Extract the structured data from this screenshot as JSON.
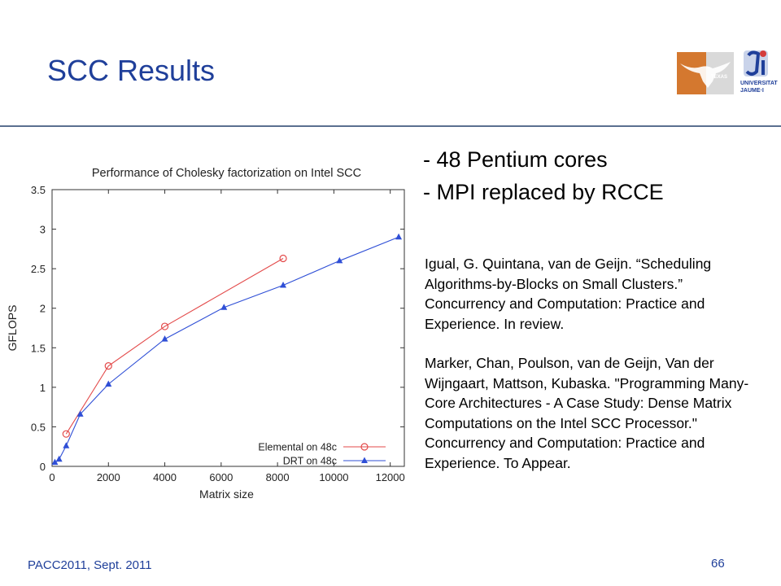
{
  "slide": {
    "title": "SCC Results",
    "bullets": [
      "- 48 Pentium cores",
      "- MPI replaced by RCCE"
    ],
    "references": [
      "Igual, G. Quintana, van de Geijn. “Scheduling Algorithms-by-Blocks on Small Clusters.” Concurrency and Computation: Practice and Experience. In review.",
      "Marker, Chan, Poulson, van de Geijn, Van der Wijngaart, Mattson, Kubaska. \"Programming Many-Core Architectures - A Case Study: Dense Matrix Computations on the Intel SCC Processor.\" Concurrency and Computation: Practice and Experience. To Appear."
    ],
    "footer_left": "PACC2011, Sept. 2011",
    "page_number": "66",
    "logos": {
      "left": {
        "icon": "texas-longhorn-logo",
        "text": "TEXAS"
      },
      "right": {
        "icon": "universitat-jaume-i-logo",
        "text_lines": [
          "UNIVERSITAT",
          "JAUME·I"
        ]
      }
    }
  },
  "chart_data": {
    "type": "line",
    "title": "Performance of Cholesky factorization on Intel SCC",
    "xlabel": "Matrix size",
    "ylabel": "GFLOPS",
    "xlim": [
      0,
      12500
    ],
    "ylim": [
      0,
      3.5
    ],
    "xticks": [
      0,
      2000,
      4000,
      6000,
      8000,
      10000,
      12000
    ],
    "yticks": [
      0,
      0.5,
      1,
      1.5,
      2,
      2.5,
      3,
      3.5
    ],
    "grid": false,
    "legend_position": "bottom-right",
    "series": [
      {
        "name": "Elemental on 48c",
        "color": "#e34a4a",
        "marker": "circle",
        "x": [
          500,
          2000,
          4000,
          8200
        ],
        "y": [
          0.41,
          1.27,
          1.77,
          2.63
        ]
      },
      {
        "name": "DRT on 48c",
        "color": "#2f4fd6",
        "marker": "triangle",
        "x": [
          100,
          250,
          500,
          1000,
          2000,
          4000,
          6100,
          8200,
          10200,
          12300
        ],
        "y": [
          0.05,
          0.09,
          0.26,
          0.66,
          1.04,
          1.61,
          2.01,
          2.29,
          2.6,
          2.9
        ]
      }
    ]
  }
}
